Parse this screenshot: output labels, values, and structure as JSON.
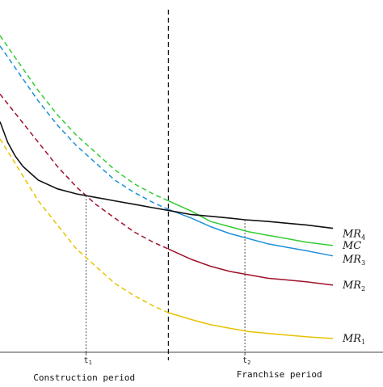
{
  "chart_data": {
    "type": "line",
    "title": "",
    "xlabel": "",
    "ylabel": "",
    "grid": false,
    "legend": "none",
    "x_ticks": [
      {
        "label": "t",
        "sub": "1",
        "x": 0.225
      },
      {
        "label": "t",
        "sub": "2",
        "x": 0.64
      }
    ],
    "period_split_x": 0.44,
    "periods": [
      {
        "label": "Construction period",
        "x": 0.22
      },
      {
        "label": "Franchise period",
        "x": 0.73
      }
    ],
    "xlim": [
      0,
      1
    ],
    "ylim": [
      0,
      1
    ],
    "series": [
      {
        "name": "MR",
        "sub": "4",
        "color": "#33cc33",
        "dashed_until": 0.44,
        "points": [
          [
            0.0,
            0.92
          ],
          [
            0.05,
            0.84
          ],
          [
            0.1,
            0.76
          ],
          [
            0.15,
            0.69
          ],
          [
            0.2,
            0.63
          ],
          [
            0.25,
            0.58
          ],
          [
            0.3,
            0.53
          ],
          [
            0.35,
            0.49
          ],
          [
            0.4,
            0.46
          ],
          [
            0.44,
            0.44
          ],
          [
            0.5,
            0.41
          ],
          [
            0.55,
            0.38
          ],
          [
            0.6,
            0.365
          ],
          [
            0.65,
            0.35
          ],
          [
            0.7,
            0.34
          ],
          [
            0.75,
            0.33
          ],
          [
            0.8,
            0.32
          ],
          [
            0.87,
            0.31
          ]
        ]
      },
      {
        "name": "MR",
        "sub": "3",
        "color": "#1e90d8",
        "dashed_until": 0.44,
        "points": [
          [
            0.0,
            0.89
          ],
          [
            0.05,
            0.81
          ],
          [
            0.1,
            0.73
          ],
          [
            0.15,
            0.66
          ],
          [
            0.2,
            0.6
          ],
          [
            0.25,
            0.55
          ],
          [
            0.3,
            0.5
          ],
          [
            0.35,
            0.465
          ],
          [
            0.4,
            0.435
          ],
          [
            0.44,
            0.415
          ],
          [
            0.5,
            0.39
          ],
          [
            0.55,
            0.365
          ],
          [
            0.6,
            0.345
          ],
          [
            0.65,
            0.33
          ],
          [
            0.7,
            0.315
          ],
          [
            0.75,
            0.305
          ],
          [
            0.8,
            0.295
          ],
          [
            0.87,
            0.28
          ]
        ]
      },
      {
        "name": "MR",
        "sub": "2",
        "color": "#a0102a",
        "dashed_until": 0.44,
        "points": [
          [
            0.0,
            0.75
          ],
          [
            0.05,
            0.68
          ],
          [
            0.1,
            0.61
          ],
          [
            0.15,
            0.54
          ],
          [
            0.2,
            0.48
          ],
          [
            0.25,
            0.43
          ],
          [
            0.3,
            0.39
          ],
          [
            0.35,
            0.35
          ],
          [
            0.4,
            0.32
          ],
          [
            0.44,
            0.3
          ],
          [
            0.5,
            0.27
          ],
          [
            0.55,
            0.25
          ],
          [
            0.6,
            0.235
          ],
          [
            0.65,
            0.225
          ],
          [
            0.7,
            0.215
          ],
          [
            0.75,
            0.21
          ],
          [
            0.8,
            0.205
          ],
          [
            0.87,
            0.195
          ]
        ]
      },
      {
        "name": "MR",
        "sub": "1",
        "color": "#e8c200",
        "dashed_until": 0.44,
        "points": [
          [
            0.0,
            0.62
          ],
          [
            0.05,
            0.53
          ],
          [
            0.1,
            0.44
          ],
          [
            0.15,
            0.37
          ],
          [
            0.2,
            0.3
          ],
          [
            0.25,
            0.25
          ],
          [
            0.3,
            0.2
          ],
          [
            0.35,
            0.165
          ],
          [
            0.4,
            0.135
          ],
          [
            0.44,
            0.115
          ],
          [
            0.5,
            0.095
          ],
          [
            0.55,
            0.08
          ],
          [
            0.6,
            0.07
          ],
          [
            0.65,
            0.06
          ],
          [
            0.7,
            0.055
          ],
          [
            0.75,
            0.05
          ],
          [
            0.8,
            0.045
          ],
          [
            0.87,
            0.04
          ]
        ]
      },
      {
        "name": "MC",
        "sub": "",
        "color": "#111111",
        "dashed_until": 0,
        "points": [
          [
            0.0,
            0.67
          ],
          [
            0.02,
            0.61
          ],
          [
            0.04,
            0.57
          ],
          [
            0.06,
            0.54
          ],
          [
            0.08,
            0.52
          ],
          [
            0.1,
            0.5
          ],
          [
            0.15,
            0.475
          ],
          [
            0.2,
            0.46
          ],
          [
            0.25,
            0.45
          ],
          [
            0.3,
            0.44
          ],
          [
            0.35,
            0.43
          ],
          [
            0.4,
            0.42
          ],
          [
            0.45,
            0.41
          ],
          [
            0.5,
            0.4
          ],
          [
            0.55,
            0.395
          ],
          [
            0.6,
            0.39
          ],
          [
            0.64,
            0.385
          ],
          [
            0.7,
            0.38
          ],
          [
            0.75,
            0.375
          ],
          [
            0.8,
            0.37
          ],
          [
            0.87,
            0.36
          ]
        ]
      }
    ],
    "series_labels": [
      {
        "name": "MR",
        "sub": "4",
        "y": 0.335
      },
      {
        "name": "MC",
        "sub": "",
        "y": 0.3
      },
      {
        "name": "MR",
        "sub": "3",
        "y": 0.26
      },
      {
        "name": "MR",
        "sub": "2",
        "y": 0.185
      },
      {
        "name": "MR",
        "sub": "1",
        "y": 0.03
      }
    ]
  }
}
